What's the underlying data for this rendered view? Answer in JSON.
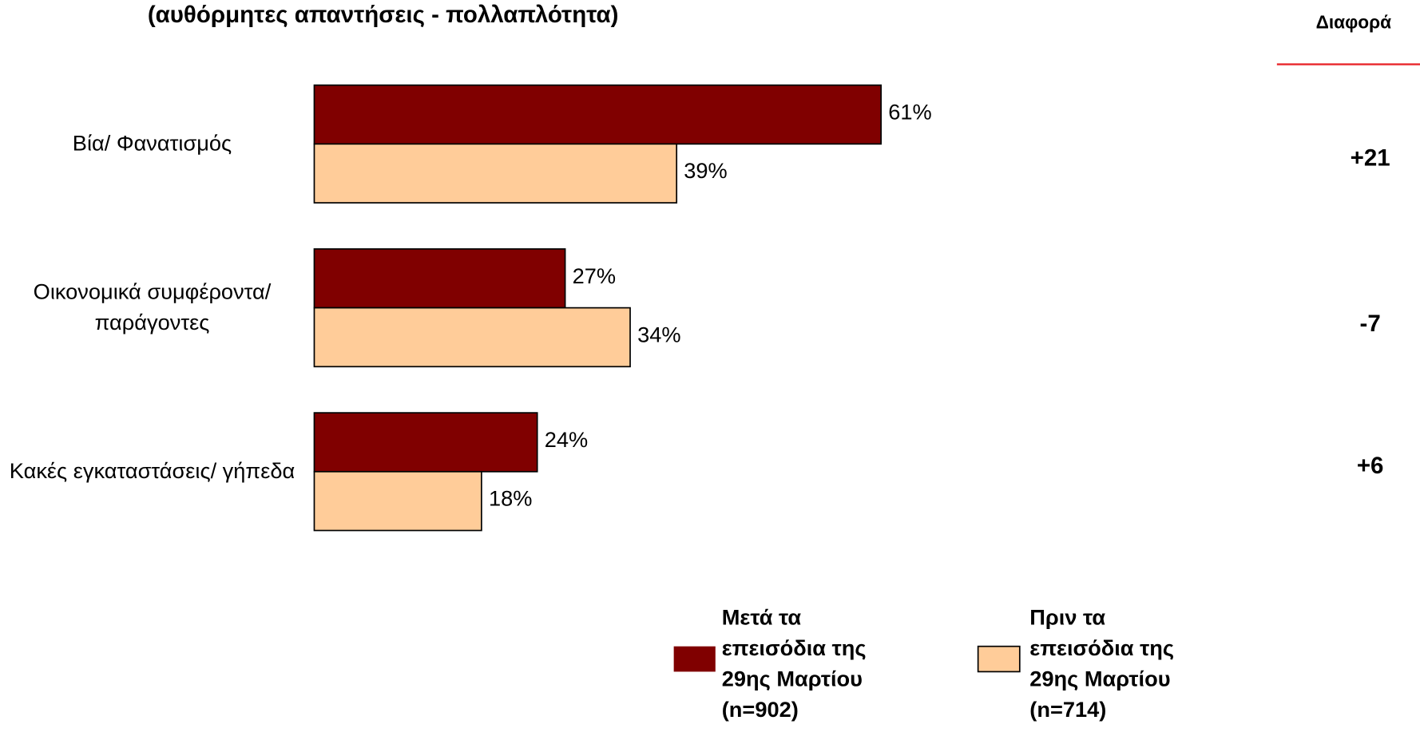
{
  "chart_data": {
    "type": "bar",
    "orientation": "horizontal",
    "title": "(αυθόρμητες απαντήσεις - πολλαπλότητα)",
    "categories": [
      "Βία/ Φανατισμός",
      "Οικονομικά συμφέροντα/ παράγοντες",
      "Κακές εγκαταστάσεις/ γήπεδα"
    ],
    "series": [
      {
        "name": "Μετά τα επεισόδια της 29ης Μαρτίου (n=902)",
        "color": "#800000",
        "values": [
          61,
          27,
          24
        ],
        "value_labels": [
          "61%",
          "27%",
          "24%"
        ]
      },
      {
        "name": "Πριν τα επεισόδια της 29ης Μαρτίου (n=714)",
        "color": "#ffcc99",
        "values": [
          39,
          34,
          18
        ],
        "value_labels": [
          "39%",
          "34%",
          "18%"
        ]
      }
    ],
    "difference_header": "Διαφορά",
    "differences": [
      "+21",
      "-7",
      "+6"
    ],
    "xlim": [
      0,
      100
    ]
  }
}
